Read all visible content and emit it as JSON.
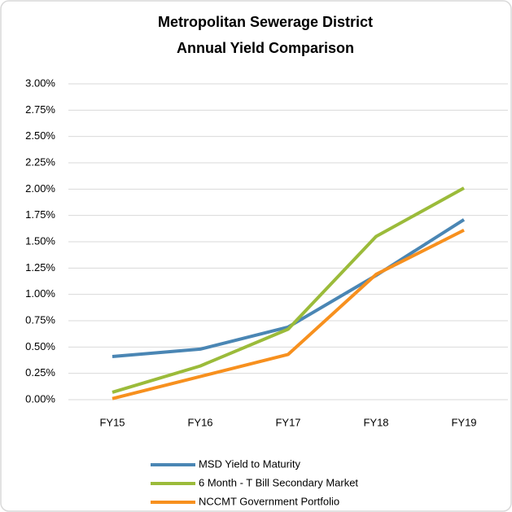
{
  "chart_data": {
    "type": "line",
    "title": [
      "Metropolitan Sewerage District",
      "Annual Yield Comparison"
    ],
    "categories": [
      "FY15",
      "FY16",
      "FY17",
      "FY18",
      "FY19"
    ],
    "series": [
      {
        "name": "MSD Yield to Maturity",
        "color": "#4a86b4",
        "values": [
          0.41,
          0.48,
          0.69,
          1.18,
          1.71
        ]
      },
      {
        "name": "6 Month - T Bill Secondary Market",
        "color": "#9bbb3a",
        "values": [
          0.07,
          0.32,
          0.67,
          1.55,
          2.01
        ]
      },
      {
        "name": "NCCMT Government Portfolio",
        "color": "#f7901e",
        "values": [
          0.01,
          0.22,
          0.43,
          1.19,
          1.61
        ]
      }
    ],
    "ylim": [
      0,
      3
    ],
    "yticks": [
      {
        "value": 0,
        "label": "0.00%"
      },
      {
        "value": 0.25,
        "label": "0.25%"
      },
      {
        "value": 0.5,
        "label": "0.50%"
      },
      {
        "value": 0.75,
        "label": "0.75%"
      },
      {
        "value": 1,
        "label": "1.00%"
      },
      {
        "value": 1.25,
        "label": "1.25%"
      },
      {
        "value": 1.5,
        "label": "1.50%"
      },
      {
        "value": 1.75,
        "label": "1.75%"
      },
      {
        "value": 2,
        "label": "2.00%"
      },
      {
        "value": 2.25,
        "label": "2.25%"
      },
      {
        "value": 2.5,
        "label": "2.50%"
      },
      {
        "value": 2.75,
        "label": "2.75%"
      },
      {
        "value": 3,
        "label": "3.00%"
      }
    ],
    "grid": true,
    "legend": "bottom"
  }
}
